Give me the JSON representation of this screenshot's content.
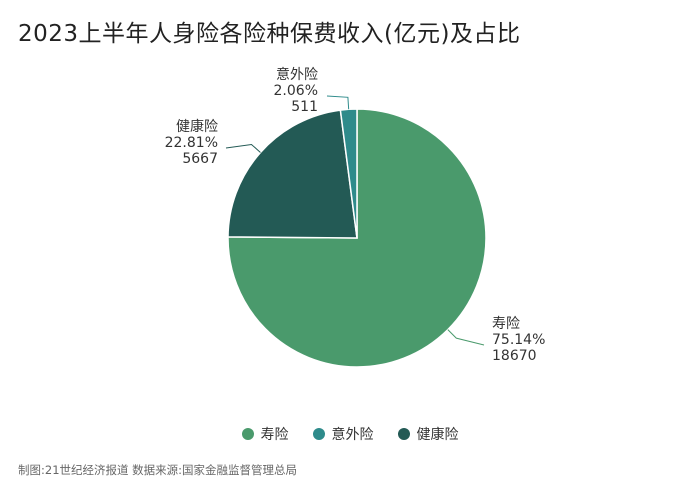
{
  "title": "2023上半年人身险各险种保费收入(亿元)及占比",
  "chart_data": {
    "type": "pie",
    "categories": [
      "寿险",
      "意外险",
      "健康险"
    ],
    "values": [
      18670,
      511,
      5667
    ],
    "percent_labels": [
      "75.14%",
      "2.06%",
      "22.81%"
    ],
    "value_labels": [
      "18670",
      "511",
      "5667"
    ],
    "colors": [
      "#4a9a6c",
      "#2e8b8b",
      "#235a55"
    ],
    "legend_position": "bottom"
  },
  "footer": "制图:21世纪经济报道 数据来源:国家金融监督管理总局"
}
